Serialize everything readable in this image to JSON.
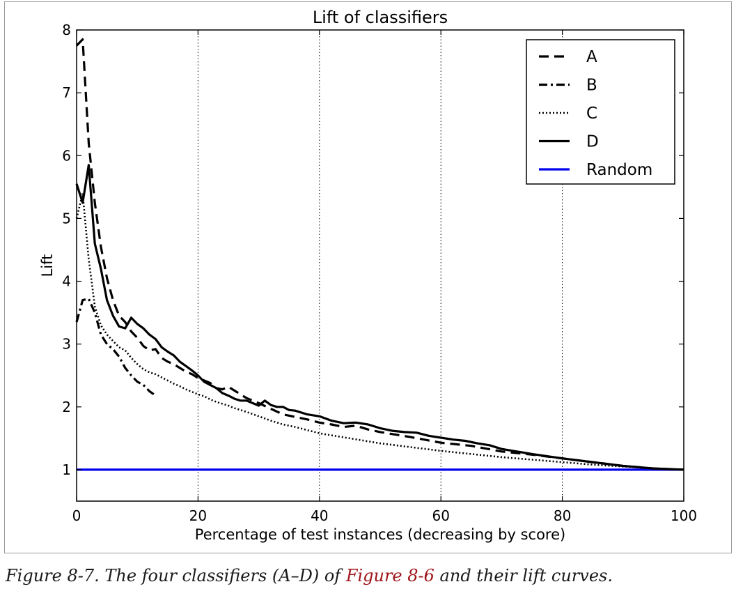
{
  "caption": {
    "prefix": "Figure 8-7. The four classifiers (A–D) of ",
    "link": "Figure 8-6",
    "suffix": " and their lift curves.",
    "link_color": "#a0151b"
  },
  "chart_data": {
    "type": "line",
    "title": "Lift of classifiers",
    "xlabel": "Percentage of test instances (decreasing by score)",
    "ylabel": "Lift",
    "xlim": [
      0,
      100
    ],
    "ylim": [
      0.5,
      8
    ],
    "xticks": [
      0,
      20,
      40,
      60,
      80,
      100
    ],
    "yticks": [
      1,
      2,
      3,
      4,
      5,
      6,
      7,
      8
    ],
    "grid": "vertical dotted at x = 20, 40, 60, 80",
    "legend_position": "top-right",
    "series": [
      {
        "name": "A",
        "style": "dashed",
        "color": "#000000",
        "x": [
          0,
          1,
          2,
          3,
          4,
          5,
          6,
          7,
          8,
          9,
          10,
          11,
          12,
          13,
          14,
          15,
          16,
          17,
          18,
          19,
          20,
          21,
          22,
          23,
          24,
          25,
          26,
          27,
          28,
          29,
          30,
          32,
          34,
          36,
          38,
          40,
          42,
          44,
          46,
          48,
          50,
          55,
          60,
          65,
          70,
          75,
          80,
          85,
          90,
          95,
          100
        ],
        "y": [
          7.75,
          7.85,
          6.2,
          5.25,
          4.55,
          4.05,
          3.7,
          3.45,
          3.35,
          3.2,
          3.1,
          2.97,
          2.9,
          2.92,
          2.78,
          2.72,
          2.68,
          2.62,
          2.56,
          2.52,
          2.46,
          2.42,
          2.38,
          2.3,
          2.28,
          2.32,
          2.26,
          2.2,
          2.14,
          2.1,
          2.06,
          1.97,
          1.88,
          1.84,
          1.8,
          1.75,
          1.72,
          1.68,
          1.7,
          1.64,
          1.6,
          1.52,
          1.43,
          1.38,
          1.29,
          1.24,
          1.18,
          1.12,
          1.06,
          1.02,
          1.0
        ]
      },
      {
        "name": "B",
        "style": "dash-dot",
        "color": "#000000",
        "x": [
          0,
          1,
          2,
          3,
          4,
          5,
          6,
          7,
          8,
          9,
          10,
          11,
          12,
          13
        ],
        "y": [
          3.35,
          3.7,
          3.72,
          3.5,
          3.15,
          3.0,
          2.92,
          2.8,
          2.62,
          2.5,
          2.4,
          2.35,
          2.25,
          2.18
        ]
      },
      {
        "name": "C",
        "style": "dotted",
        "color": "#000000",
        "x": [
          0,
          1,
          2,
          3,
          4,
          5,
          6,
          7,
          8,
          9,
          10,
          11,
          12,
          13,
          14,
          15,
          16,
          17,
          18,
          19,
          20,
          21,
          22,
          23,
          24,
          25,
          26,
          28,
          30,
          32,
          34,
          36,
          38,
          40,
          45,
          50,
          55,
          60,
          65,
          70,
          75,
          80,
          85,
          90,
          95,
          100
        ],
        "y": [
          5.0,
          5.4,
          4.35,
          3.6,
          3.3,
          3.15,
          3.05,
          2.95,
          2.9,
          2.78,
          2.68,
          2.6,
          2.55,
          2.52,
          2.47,
          2.42,
          2.37,
          2.33,
          2.28,
          2.24,
          2.2,
          2.17,
          2.12,
          2.08,
          2.05,
          2.02,
          1.98,
          1.92,
          1.85,
          1.78,
          1.72,
          1.68,
          1.63,
          1.58,
          1.5,
          1.42,
          1.36,
          1.3,
          1.25,
          1.2,
          1.16,
          1.12,
          1.08,
          1.05,
          1.02,
          1.0
        ]
      },
      {
        "name": "D",
        "style": "solid",
        "color": "#000000",
        "x": [
          0,
          1,
          2,
          3,
          4,
          5,
          6,
          7,
          8,
          9,
          10,
          11,
          12,
          13,
          14,
          15,
          16,
          17,
          18,
          19,
          20,
          21,
          22,
          23,
          24,
          25,
          26,
          27,
          28,
          29,
          30,
          31,
          32,
          33,
          34,
          35,
          36,
          38,
          40,
          42,
          44,
          46,
          48,
          50,
          52,
          54,
          56,
          58,
          60,
          62,
          64,
          66,
          68,
          70,
          75,
          80,
          85,
          90,
          95,
          100
        ],
        "y": [
          5.55,
          5.25,
          5.85,
          4.6,
          4.2,
          3.7,
          3.45,
          3.28,
          3.25,
          3.42,
          3.32,
          3.25,
          3.15,
          3.08,
          2.95,
          2.88,
          2.82,
          2.72,
          2.65,
          2.58,
          2.5,
          2.4,
          2.35,
          2.3,
          2.22,
          2.18,
          2.13,
          2.1,
          2.1,
          2.06,
          2.02,
          2.1,
          2.03,
          2.0,
          2.0,
          1.95,
          1.94,
          1.88,
          1.85,
          1.78,
          1.74,
          1.75,
          1.72,
          1.66,
          1.62,
          1.6,
          1.59,
          1.54,
          1.51,
          1.48,
          1.46,
          1.42,
          1.39,
          1.33,
          1.25,
          1.18,
          1.12,
          1.06,
          1.02,
          1.0
        ]
      },
      {
        "name": "Random",
        "style": "solid",
        "color": "#0000ee",
        "x": [
          0,
          100
        ],
        "y": [
          1,
          1
        ]
      }
    ]
  }
}
